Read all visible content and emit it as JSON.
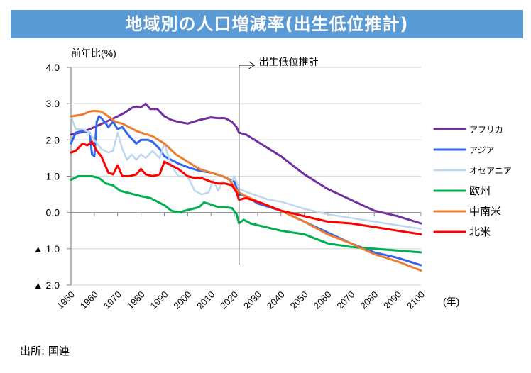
{
  "title": "地域別の人口増減率(出生低位推計)",
  "source": "出所: 国連",
  "chart_data": {
    "type": "line",
    "title": "地域別の人口増減率(出生低位推計)",
    "ylabel": "前年比(%)",
    "xlabel": "(年)",
    "ylim": [
      -2.0,
      4.0
    ],
    "xlim": [
      1950,
      2100
    ],
    "yticks": [
      4.0,
      3.0,
      2.0,
      1.0,
      0.0,
      -1.0,
      -2.0
    ],
    "ytick_labels": [
      "4.0",
      "3.0",
      "2.0",
      "1.0",
      "0.0",
      "▲ 1.0",
      "▲ 2.0"
    ],
    "xticks": [
      1950,
      1960,
      1970,
      1980,
      1990,
      2000,
      2010,
      2020,
      2030,
      2040,
      2050,
      2060,
      2070,
      2080,
      2090,
      2100
    ],
    "xtick_labels": [
      "1950",
      "1960",
      "1970",
      "1980",
      "1990",
      "2000",
      "2010",
      "2020",
      "2030",
      "2040",
      "2050",
      "2060",
      "2070",
      "2080",
      "2090",
      "2100"
    ],
    "grid": true,
    "legend_position": "right",
    "annotation": {
      "text": "出生低位推計",
      "x": 2022
    },
    "series": [
      {
        "name": "アフリカ",
        "color": "#7030a0",
        "width": 3,
        "x": [
          1950,
          1955,
          1960,
          1965,
          1970,
          1973,
          1976,
          1978,
          1980,
          1982,
          1984,
          1987,
          1990,
          1993,
          1996,
          2000,
          2005,
          2010,
          2013,
          2016,
          2019,
          2021,
          2022,
          2025,
          2030,
          2040,
          2050,
          2060,
          2070,
          2080,
          2090,
          2100
        ],
        "y": [
          2.15,
          2.22,
          2.35,
          2.5,
          2.65,
          2.75,
          2.88,
          2.92,
          2.9,
          3.0,
          2.85,
          2.85,
          2.65,
          2.55,
          2.5,
          2.45,
          2.55,
          2.62,
          2.6,
          2.6,
          2.5,
          2.35,
          2.2,
          2.15,
          1.95,
          1.55,
          1.05,
          0.65,
          0.35,
          0.05,
          -0.1,
          -0.3
        ]
      },
      {
        "name": "アジア",
        "color": "#3366ee",
        "width": 3,
        "x": [
          1950,
          1952,
          1955,
          1958,
          1959,
          1960,
          1961,
          1962,
          1963,
          1965,
          1966,
          1968,
          1970,
          1972,
          1975,
          1978,
          1980,
          1983,
          1985,
          1988,
          1990,
          1993,
          1996,
          2000,
          2005,
          2010,
          2015,
          2020,
          2022,
          2025,
          2030,
          2040,
          2050,
          2060,
          2070,
          2080,
          2090,
          2100
        ],
        "y": [
          1.9,
          2.2,
          2.25,
          2.2,
          1.6,
          1.55,
          2.5,
          2.65,
          2.6,
          2.45,
          2.35,
          2.5,
          2.3,
          2.35,
          2.1,
          1.9,
          2.0,
          2.0,
          1.95,
          1.75,
          1.55,
          1.45,
          1.35,
          1.25,
          1.15,
          1.1,
          1.0,
          0.85,
          0.5,
          0.45,
          0.25,
          0.05,
          -0.25,
          -0.55,
          -0.85,
          -1.1,
          -1.25,
          -1.45
        ]
      },
      {
        "name": "オセアニア",
        "color": "#bdd7ee",
        "width": 2.5,
        "x": [
          1950,
          1952,
          1955,
          1958,
          1960,
          1963,
          1966,
          1968,
          1970,
          1972,
          1974,
          1976,
          1978,
          1980,
          1982,
          1985,
          1988,
          1990,
          1993,
          1996,
          2000,
          2003,
          2006,
          2009,
          2011,
          2013,
          2015,
          2018,
          2020,
          2022,
          2024,
          2028,
          2035,
          2040,
          2050,
          2060,
          2070,
          2080,
          2090,
          2100
        ],
        "y": [
          2.65,
          2.3,
          2.3,
          2.2,
          2.0,
          1.75,
          1.65,
          1.7,
          2.2,
          1.75,
          1.45,
          1.6,
          1.45,
          1.6,
          1.5,
          1.7,
          1.5,
          1.9,
          1.3,
          1.0,
          1.0,
          0.6,
          0.5,
          0.55,
          0.9,
          0.6,
          0.85,
          0.75,
          1.0,
          0.65,
          0.6,
          0.5,
          0.35,
          0.3,
          0.1,
          -0.05,
          -0.15,
          -0.25,
          -0.35,
          -0.45
        ]
      },
      {
        "name": "欧州",
        "color": "#00b050",
        "width": 3,
        "x": [
          1950,
          1953,
          1956,
          1959,
          1962,
          1965,
          1968,
          1971,
          1974,
          1977,
          1980,
          1984,
          1987,
          1990,
          1993,
          1996,
          1999,
          2002,
          2005,
          2007,
          2010,
          2013,
          2016,
          2019,
          2021,
          2022,
          2024,
          2027,
          2030,
          2040,
          2050,
          2060,
          2070,
          2080,
          2090,
          2100
        ],
        "y": [
          0.9,
          1.0,
          1.0,
          1.0,
          0.95,
          0.8,
          0.75,
          0.6,
          0.55,
          0.5,
          0.45,
          0.4,
          0.3,
          0.2,
          0.05,
          0.0,
          0.05,
          0.1,
          0.15,
          0.28,
          0.22,
          0.15,
          0.15,
          0.12,
          -0.05,
          -0.3,
          -0.2,
          -0.3,
          -0.35,
          -0.5,
          -0.6,
          -0.85,
          -0.95,
          -1.0,
          -1.05,
          -1.1
        ]
      },
      {
        "name": "中南米",
        "color": "#ed7d31",
        "width": 3,
        "x": [
          1950,
          1955,
          1958,
          1960,
          1963,
          1966,
          1969,
          1972,
          1975,
          1978,
          1980,
          1985,
          1990,
          1995,
          2000,
          2005,
          2010,
          2015,
          2018,
          2020,
          2022,
          2025,
          2030,
          2040,
          2050,
          2060,
          2070,
          2080,
          2090,
          2100
        ],
        "y": [
          2.65,
          2.7,
          2.78,
          2.8,
          2.78,
          2.65,
          2.5,
          2.45,
          2.35,
          2.25,
          2.2,
          2.1,
          1.9,
          1.6,
          1.4,
          1.2,
          1.1,
          1.0,
          0.9,
          0.7,
          0.55,
          0.45,
          0.3,
          0.05,
          -0.25,
          -0.6,
          -0.85,
          -1.15,
          -1.35,
          -1.6
        ]
      },
      {
        "name": "北米",
        "color": "#ff0000",
        "width": 3,
        "x": [
          1950,
          1952,
          1955,
          1957,
          1959,
          1961,
          1963,
          1966,
          1968,
          1970,
          1972,
          1975,
          1978,
          1980,
          1982,
          1985,
          1988,
          1990,
          1993,
          1996,
          2000,
          2003,
          2006,
          2010,
          2013,
          2016,
          2019,
          2021,
          2022,
          2025,
          2030,
          2040,
          2050,
          2060,
          2070,
          2080,
          2090,
          2100
        ],
        "y": [
          1.65,
          1.7,
          1.9,
          1.85,
          1.95,
          1.7,
          1.55,
          1.1,
          1.05,
          1.3,
          1.0,
          1.0,
          1.05,
          1.2,
          1.05,
          1.0,
          1.05,
          1.4,
          1.3,
          1.2,
          1.0,
          0.95,
          0.95,
          0.85,
          0.8,
          0.8,
          0.75,
          0.55,
          0.35,
          0.4,
          0.3,
          0.05,
          -0.1,
          -0.25,
          -0.3,
          -0.4,
          -0.5,
          -0.6
        ]
      }
    ]
  }
}
